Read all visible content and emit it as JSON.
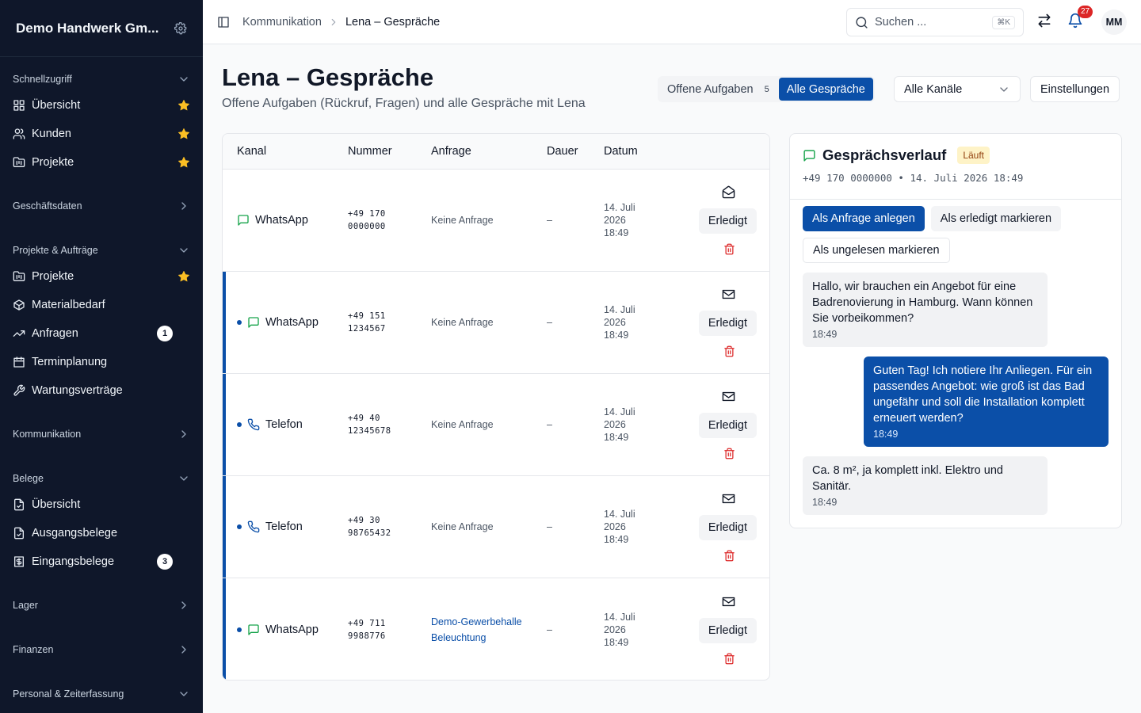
{
  "sidebar": {
    "company": "Demo Handwerk Gm...",
    "sections": [
      {
        "title": "Schnellzugriff",
        "expanded": true,
        "items": [
          {
            "label": "Übersicht",
            "icon": "grid",
            "starred": true
          },
          {
            "label": "Kunden",
            "icon": "users",
            "starred": true
          },
          {
            "label": "Projekte",
            "icon": "folder",
            "starred": true
          }
        ]
      },
      {
        "title": "Geschäftsdaten",
        "expanded": false,
        "items": []
      },
      {
        "title": "Projekte & Aufträge",
        "expanded": true,
        "items": [
          {
            "label": "Projekte",
            "icon": "folder",
            "starred": true
          },
          {
            "label": "Materialbedarf",
            "icon": "box"
          },
          {
            "label": "Anfragen",
            "icon": "trend",
            "badge": 1
          },
          {
            "label": "Terminplanung",
            "icon": "calendar"
          },
          {
            "label": "Wartungsverträge",
            "icon": "wrench"
          }
        ]
      },
      {
        "title": "Kommunikation",
        "expanded": false,
        "items": []
      },
      {
        "title": "Belege",
        "expanded": true,
        "items": [
          {
            "label": "Übersicht",
            "icon": "file"
          },
          {
            "label": "Ausgangsbelege",
            "icon": "file"
          },
          {
            "label": "Eingangsbelege",
            "icon": "receipt",
            "badge": 3
          }
        ]
      },
      {
        "title": "Lager",
        "expanded": false,
        "items": []
      },
      {
        "title": "Finanzen",
        "expanded": false,
        "items": []
      },
      {
        "title": "Personal & Zeiterfassung",
        "expanded": true,
        "items": []
      }
    ]
  },
  "topbar": {
    "breadcrumb": [
      "Kommunikation",
      "Lena – Gespräche"
    ],
    "search_placeholder": "Suchen ...",
    "search_shortcut": "⌘K",
    "notifications": 27,
    "avatar": "MM"
  },
  "header": {
    "title": "Lena – Gespräche",
    "subtitle": "Offene Aufgaben (Rückruf, Fragen) und alle Gespräche mit Lena",
    "tabs": [
      {
        "label": "Offene Aufgaben",
        "count": 5,
        "active": false
      },
      {
        "label": "Alle Gespräche",
        "active": true
      }
    ],
    "filter": "Alle Kanäle",
    "settings": "Einstellungen"
  },
  "table": {
    "columns": [
      "Kanal",
      "Nummer",
      "Anfrage",
      "Dauer",
      "Datum"
    ],
    "rows": [
      {
        "channel": "WhatsApp",
        "icon": "chat",
        "unread": false,
        "number": "+49 170 0000000",
        "request": "Keine Anfrage",
        "request_link": false,
        "duration": "–",
        "date": "14. Juli 2026 18:49",
        "action": "Erledigt"
      },
      {
        "channel": "WhatsApp",
        "icon": "chat",
        "unread": true,
        "number": "+49 151 1234567",
        "request": "Keine Anfrage",
        "request_link": false,
        "duration": "–",
        "date": "14. Juli 2026 18:49",
        "action": "Erledigt"
      },
      {
        "channel": "Telefon",
        "icon": "phone",
        "unread": true,
        "number": "+49 40 12345678",
        "request": "Keine Anfrage",
        "request_link": false,
        "duration": "–",
        "date": "14. Juli 2026 18:49",
        "action": "Erledigt"
      },
      {
        "channel": "Telefon",
        "icon": "phone",
        "unread": true,
        "number": "+49 30 98765432",
        "request": "Keine Anfrage",
        "request_link": false,
        "duration": "–",
        "date": "14. Juli 2026 18:49",
        "action": "Erledigt"
      },
      {
        "channel": "WhatsApp",
        "icon": "chat",
        "unread": true,
        "number": "+49 711 9988776",
        "request": "Demo-Gewerbehalle Beleuchtung",
        "request_link": true,
        "duration": "–",
        "date": "14. Juli 2026 18:49",
        "action": "Erledigt"
      }
    ]
  },
  "panel": {
    "title": "Gesprächsverlauf",
    "status": "Läuft",
    "meta": "+49 170 0000000 • 14. Juli 2026 18:49",
    "actions": [
      {
        "label": "Als Anfrage anlegen",
        "primary": true
      },
      {
        "label": "Als erledigt markieren",
        "primary": false
      },
      {
        "label": "Als ungelesen markieren",
        "primary": false
      }
    ],
    "messages": [
      {
        "text": "Hallo, wir brauchen ein Angebot für eine Badrenovierung in Hamburg. Wann können Sie vorbeikommen?",
        "time": "18:49",
        "side": "in"
      },
      {
        "text": "Guten Tag! Ich notiere Ihr Anliegen. Für ein passendes Angebot: wie groß ist das Bad ungefähr und soll die Installation komplett erneuert werden?",
        "time": "18:49",
        "side": "out"
      },
      {
        "text": "Ca. 8 m², ja komplett inkl. Elektro und Sanitär.",
        "time": "18:49",
        "side": "in"
      }
    ]
  }
}
